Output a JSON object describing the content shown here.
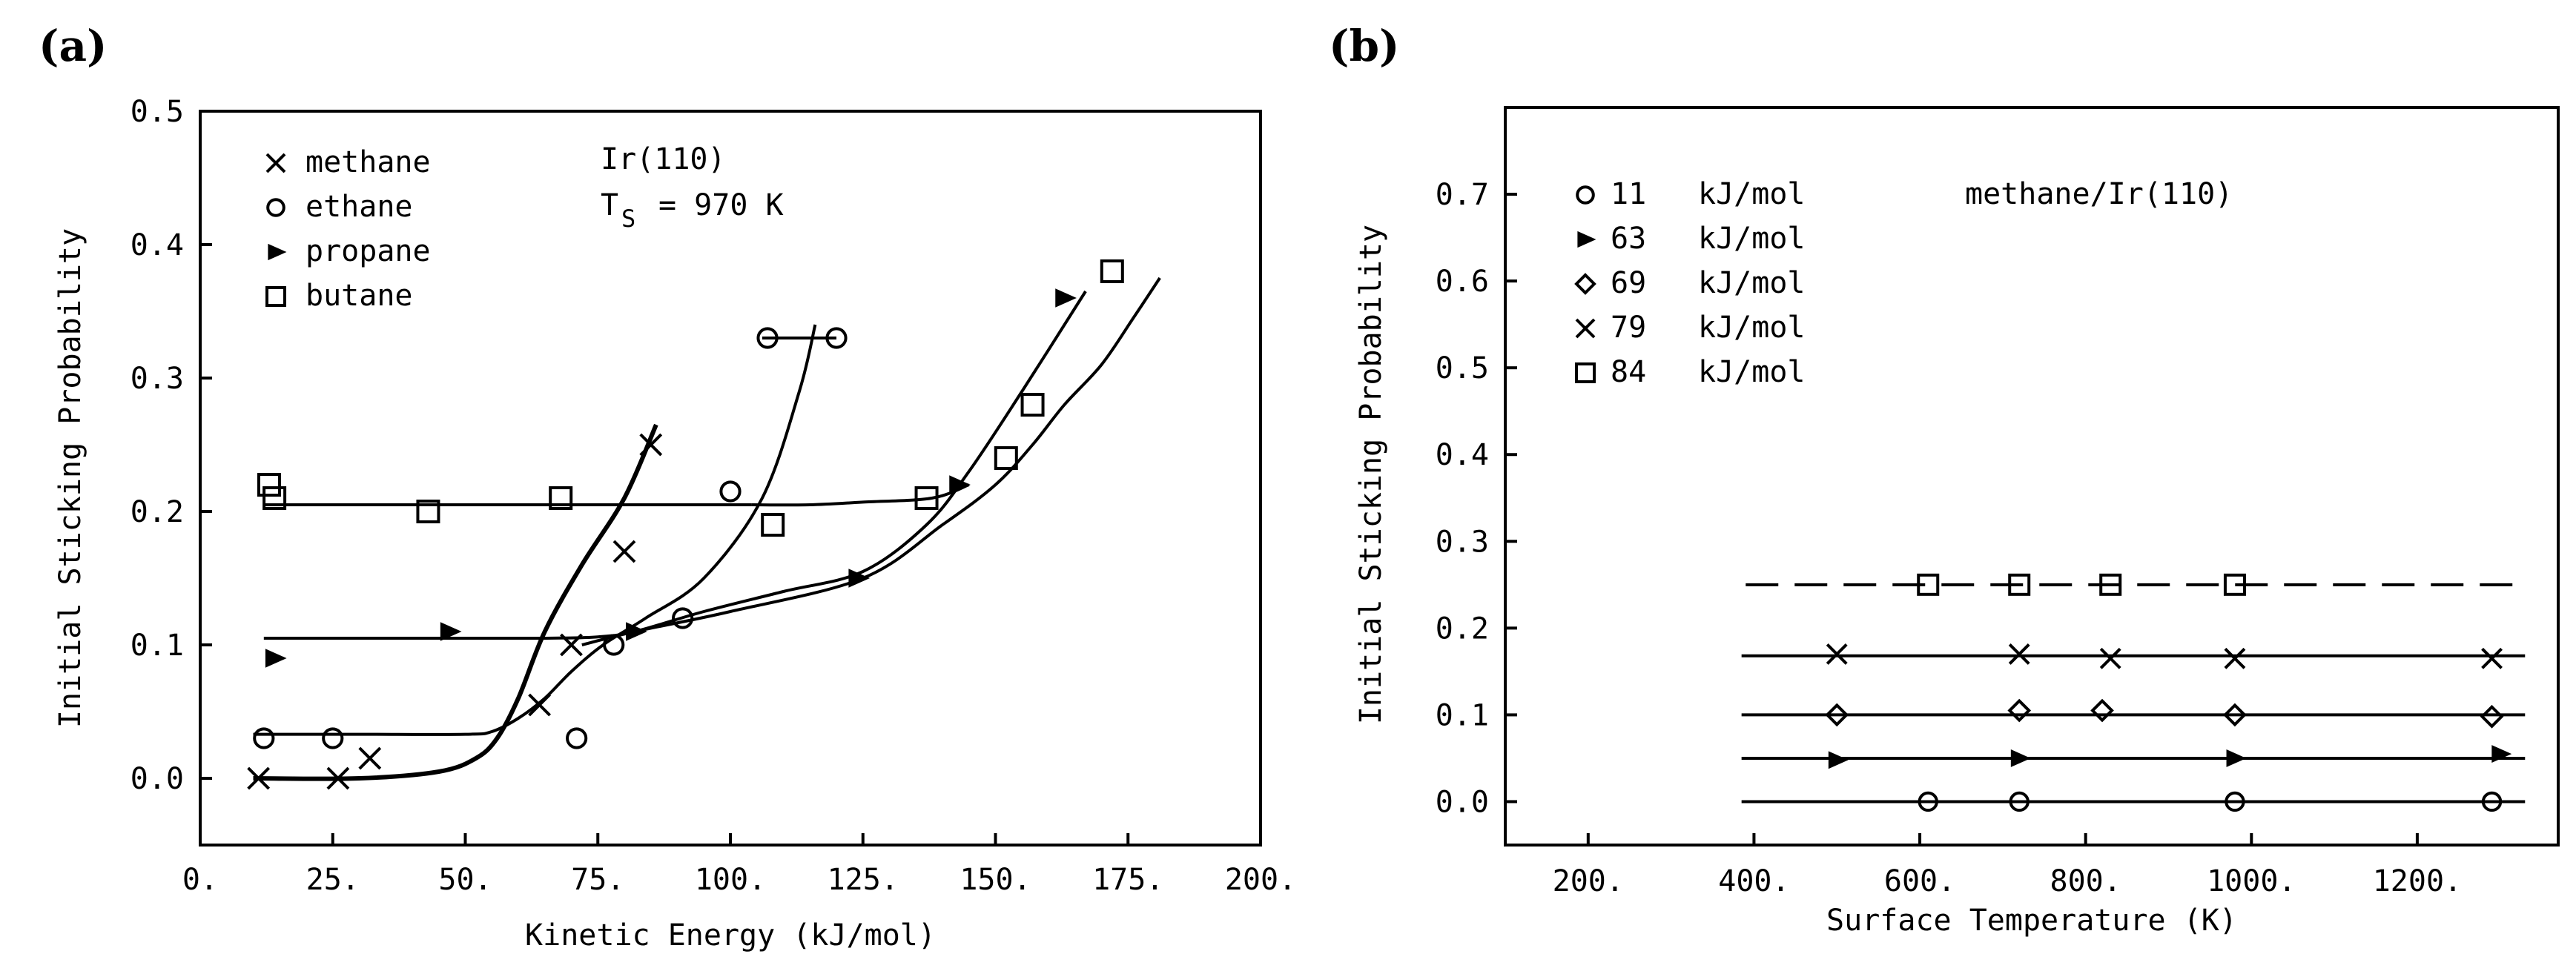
{
  "chart_data": [
    {
      "panel": "(a)",
      "type": "scatter",
      "xlabel": "Kinetic Energy (kJ/mol)",
      "ylabel": "Initial Sticking Probability",
      "xlim": [
        0,
        200
      ],
      "ylim": [
        -0.05,
        0.5
      ],
      "xticks": [
        0,
        25,
        50,
        75,
        100,
        125,
        150,
        175,
        200
      ],
      "xtick_labels": [
        "0.",
        "25.",
        "50.",
        "75.",
        "100.",
        "125.",
        "150.",
        "175.",
        "200."
      ],
      "yticks": [
        0.0,
        0.1,
        0.2,
        0.3,
        0.4,
        0.5
      ],
      "ytick_labels": [
        "0.0",
        "0.1",
        "0.2",
        "0.3",
        "0.4",
        "0.5"
      ],
      "annotation_line1": "Ir(110)",
      "annotation_T": "T",
      "annotation_sub": "S",
      "annotation_value": "= 970 K",
      "legend_position": "top-left",
      "series": [
        {
          "name": "methane",
          "marker": "x",
          "x": [
            11,
            26,
            32,
            64,
            70,
            80,
            85
          ],
          "y": [
            0.0,
            0.0,
            0.015,
            0.055,
            0.1,
            0.17,
            0.25
          ]
        },
        {
          "name": "ethane",
          "marker": "o",
          "x": [
            12,
            25,
            71,
            78,
            91,
            100,
            107,
            120
          ],
          "y": [
            0.03,
            0.03,
            0.03,
            0.1,
            0.12,
            0.215,
            0.33,
            0.33
          ]
        },
        {
          "name": "propane",
          "marker": "triangle-right",
          "x": [
            14,
            47,
            82,
            124,
            143,
            163
          ],
          "y": [
            0.09,
            0.11,
            0.11,
            0.15,
            0.22,
            0.36
          ]
        },
        {
          "name": "butane",
          "marker": "square",
          "x": [
            13,
            14,
            43,
            68,
            108,
            137,
            152,
            157,
            172
          ],
          "y": [
            0.22,
            0.21,
            0.2,
            0.21,
            0.19,
            0.21,
            0.24,
            0.28,
            0.38
          ]
        }
      ],
      "fit_lines": [
        {
          "x": [
            12,
            60,
            75,
            80,
            90,
            100,
            104
          ],
          "y": [
            0.205,
            0.205,
            0.205,
            0.205,
            0.205,
            0.205,
            0.205
          ]
        },
        {
          "x": [
            104,
            115,
            125,
            138,
            145
          ],
          "y": [
            0.205,
            0.205,
            0.207,
            0.21,
            0.22
          ]
        },
        {
          "x": [
            10,
            30,
            45,
            52,
            56,
            60,
            65,
            72,
            80,
            86
          ],
          "y": [
            0.0,
            0.0,
            0.005,
            0.015,
            0.03,
            0.06,
            0.11,
            0.16,
            0.21,
            0.265
          ]
        },
        {
          "x": [
            10,
            30,
            50,
            55,
            60,
            65,
            70,
            76,
            84,
            95,
            106,
            113,
            116
          ],
          "y": [
            0.033,
            0.033,
            0.033,
            0.035,
            0.045,
            0.06,
            0.08,
            0.1,
            0.12,
            0.15,
            0.21,
            0.29,
            0.34
          ]
        },
        {
          "x": [
            106,
            113,
            120
          ],
          "y": [
            0.33,
            0.33,
            0.33
          ]
        },
        {
          "x": [
            12,
            30,
            50,
            65,
            75,
            82,
            95,
            110,
            125,
            137,
            145,
            155,
            167
          ],
          "y": [
            0.105,
            0.105,
            0.105,
            0.105,
            0.106,
            0.11,
            0.125,
            0.14,
            0.155,
            0.19,
            0.23,
            0.29,
            0.365
          ]
        },
        {
          "x": [
            72,
            82,
            100,
            125,
            140,
            150,
            157,
            163,
            170,
            176,
            181
          ],
          "y": [
            0.1,
            0.11,
            0.125,
            0.15,
            0.19,
            0.22,
            0.25,
            0.28,
            0.31,
            0.345,
            0.375
          ]
        }
      ]
    },
    {
      "panel": "(b)",
      "type": "scatter",
      "xlabel": "Surface Temperature (K)",
      "ylabel": "Initial Sticking Probability",
      "xlim": [
        100,
        1370
      ],
      "ylim": [
        -0.05,
        0.8
      ],
      "xticks": [
        200,
        400,
        600,
        800,
        1000,
        1200
      ],
      "xtick_labels": [
        "200.",
        "400.",
        "600.",
        "800.",
        "1000.",
        "1200."
      ],
      "yticks": [
        0.0,
        0.1,
        0.2,
        0.3,
        0.4,
        0.5,
        0.6,
        0.7
      ],
      "ytick_labels": [
        "0.0",
        "0.1",
        "0.2",
        "0.3",
        "0.4",
        "0.5",
        "0.6",
        "0.7"
      ],
      "annotation": "methane/Ir(110)",
      "legend_position": "top-left",
      "series": [
        {
          "name": "11 kJ/mol",
          "energy": "11",
          "unit": "kJ/mol",
          "marker": "o",
          "x": [
            610,
            720,
            980,
            1290
          ],
          "y": [
            0.0,
            0.0,
            0.0,
            0.0
          ],
          "fit_y": 0.0
        },
        {
          "name": "63 kJ/mol",
          "energy": "63",
          "unit": "kJ/mol",
          "marker": "triangle-right",
          "x": [
            500,
            720,
            980,
            1300
          ],
          "y": [
            0.048,
            0.05,
            0.05,
            0.055
          ],
          "fit_y": 0.05
        },
        {
          "name": "69 kJ/mol",
          "energy": "69",
          "unit": "kJ/mol",
          "marker": "diamond",
          "x": [
            500,
            720,
            820,
            980,
            1290
          ],
          "y": [
            0.1,
            0.105,
            0.105,
            0.1,
            0.098
          ],
          "fit_y": 0.1
        },
        {
          "name": "79 kJ/mol",
          "energy": "79",
          "unit": "kJ/mol",
          "marker": "x",
          "x": [
            500,
            720,
            830,
            980,
            1290
          ],
          "y": [
            0.17,
            0.17,
            0.165,
            0.165,
            0.165
          ],
          "fit_y": 0.168
        },
        {
          "name": "84 kJ/mol",
          "energy": "84",
          "unit": "kJ/mol",
          "marker": "square",
          "x": [
            610,
            720,
            830,
            980
          ],
          "y": [
            0.25,
            0.25,
            0.25,
            0.25
          ],
          "fit_y": 0.25,
          "fit_dashed": true
        }
      ]
    }
  ]
}
